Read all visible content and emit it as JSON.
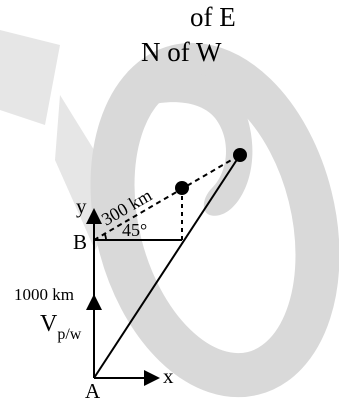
{
  "labels": {
    "header_line1": "of E",
    "header_line2": "N of W",
    "axis_y": "y",
    "axis_x": "x",
    "point_a": "A",
    "point_b": "B",
    "dist_300": "300 km",
    "angle": "45°",
    "dist_1000": "1000 km",
    "velocity_main": "V",
    "velocity_sub": "p/w"
  },
  "colors": {
    "ink": "#000000",
    "watermark": "#d9d9d9"
  }
}
